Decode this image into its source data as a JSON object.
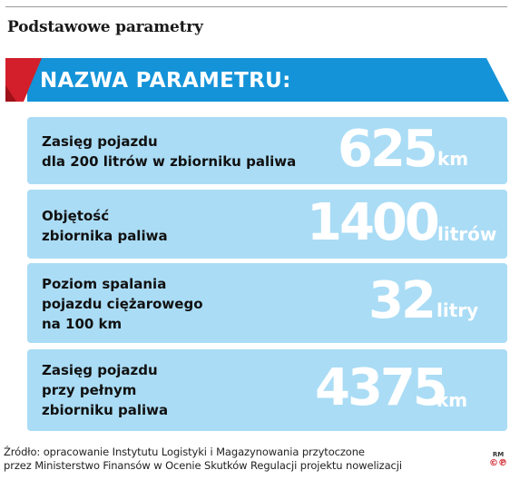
{
  "header": {
    "title": "Podstawowe parametry"
  },
  "banner": {
    "label": "NAZWA PARAMETRU:",
    "colors": {
      "red": "#d21f2b",
      "blue": "#1493d8"
    }
  },
  "cards": [
    {
      "label_lines": [
        "Zasięg pojazdu",
        "dla 200 litrów w zbiorniku paliwa"
      ],
      "value": "625",
      "unit": "km"
    },
    {
      "label_lines": [
        "Objętość",
        "zbiornika paliwa"
      ],
      "value": "1400",
      "unit": "litrów"
    },
    {
      "label_lines": [
        "Poziom spalania",
        "pojazdu ciężarowego",
        "na 100 km"
      ],
      "value": "32",
      "unit": "litry"
    },
    {
      "label_lines": [
        "Zasięg pojazdu",
        "przy pełnym",
        "zbiorniku paliwa"
      ],
      "value": "4375",
      "unit": "km"
    }
  ],
  "footer": {
    "source_lines": [
      "Źródło: opracowanie Instytutu Logistyki i Magazynowania przytoczone",
      "przez Ministerstwo Finansów w Ocenie Skutków Regulacji projektu nowelizacji"
    ],
    "credit_top": "RM",
    "credit_logo": "©℗"
  }
}
